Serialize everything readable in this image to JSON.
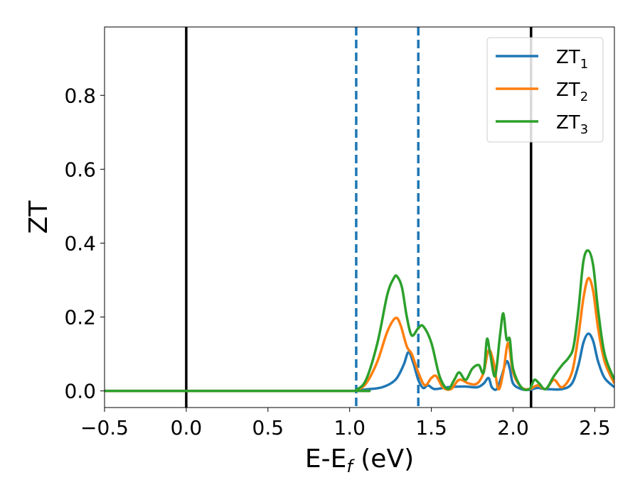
{
  "chart_data": {
    "type": "line",
    "xlabel": "E-E",
    "xlabel_sub": "f",
    "xlabel_unit": " (eV)",
    "ylabel": "ZT",
    "xlim": [
      -0.5,
      2.62
    ],
    "ylim": [
      -0.045,
      0.985
    ],
    "xticks": [
      -0.5,
      0.0,
      0.5,
      1.0,
      1.5,
      2.0,
      2.5
    ],
    "xtick_labels": [
      "−0.5",
      "0.0",
      "0.5",
      "1.0",
      "1.5",
      "2.0",
      "2.5"
    ],
    "yticks": [
      0.0,
      0.2,
      0.4,
      0.6,
      0.8
    ],
    "ytick_labels": [
      "0.0",
      "0.2",
      "0.4",
      "0.6",
      "0.8"
    ],
    "grid": false,
    "legend": "top-right",
    "vlines_solid": [
      0.0,
      2.11
    ],
    "vlines_dashed": [
      1.04,
      1.42
    ],
    "vline_solid_color": "#000000",
    "vline_dashed_color": "#1f77b4",
    "series": [
      {
        "name": "ZT",
        "name_sub": "1",
        "color": "#1f77b4",
        "x": [
          -0.5,
          1.0,
          1.04,
          1.1,
          1.2,
          1.28,
          1.33,
          1.36,
          1.39,
          1.42,
          1.45,
          1.48,
          1.52,
          1.6,
          1.7,
          1.78,
          1.82,
          1.85,
          1.87,
          1.9,
          1.93,
          1.96,
          1.98,
          2.0,
          2.05,
          2.1,
          2.15,
          2.2,
          2.3,
          2.36,
          2.4,
          2.43,
          2.46,
          2.49,
          2.52,
          2.56,
          2.62
        ],
        "y": [
          0.0,
          0.0,
          0.001,
          0.004,
          0.01,
          0.03,
          0.07,
          0.105,
          0.075,
          0.03,
          0.008,
          0.015,
          0.005,
          0.01,
          0.012,
          0.01,
          0.02,
          0.035,
          0.01,
          0.005,
          0.04,
          0.08,
          0.06,
          0.02,
          0.005,
          0.003,
          0.008,
          0.005,
          0.005,
          0.02,
          0.07,
          0.13,
          0.155,
          0.135,
          0.08,
          0.035,
          0.01
        ]
      },
      {
        "name": "ZT",
        "name_sub": "2",
        "color": "#ff7f0e",
        "x": [
          -0.5,
          1.0,
          1.04,
          1.1,
          1.17,
          1.23,
          1.28,
          1.31,
          1.35,
          1.38,
          1.42,
          1.46,
          1.5,
          1.53,
          1.57,
          1.62,
          1.67,
          1.73,
          1.78,
          1.82,
          1.85,
          1.88,
          1.91,
          1.94,
          1.97,
          2.0,
          2.05,
          2.1,
          2.15,
          2.2,
          2.25,
          2.3,
          2.36,
          2.4,
          2.43,
          2.46,
          2.49,
          2.52,
          2.56,
          2.62
        ],
        "y": [
          0.0,
          0.0,
          0.002,
          0.02,
          0.08,
          0.16,
          0.197,
          0.18,
          0.12,
          0.1,
          0.05,
          0.015,
          0.035,
          0.04,
          0.01,
          0.005,
          0.03,
          0.02,
          0.02,
          0.05,
          0.11,
          0.08,
          0.005,
          0.05,
          0.13,
          0.05,
          0.01,
          0.005,
          0.015,
          0.005,
          0.03,
          0.01,
          0.05,
          0.15,
          0.25,
          0.305,
          0.27,
          0.17,
          0.08,
          0.02
        ]
      },
      {
        "name": "ZT",
        "name_sub": "3",
        "color": "#2ca02c",
        "x": [
          -0.5,
          1.0,
          1.04,
          1.1,
          1.17,
          1.23,
          1.27,
          1.29,
          1.32,
          1.35,
          1.38,
          1.42,
          1.45,
          1.5,
          1.55,
          1.6,
          1.64,
          1.67,
          1.71,
          1.75,
          1.79,
          1.82,
          1.84,
          1.86,
          1.89,
          1.92,
          1.94,
          1.96,
          1.98,
          2.0,
          2.05,
          2.1,
          2.13,
          2.16,
          2.2,
          2.25,
          2.3,
          2.34,
          2.37,
          2.4,
          2.43,
          2.46,
          2.49,
          2.52,
          2.56,
          2.62
        ],
        "y": [
          0.0,
          0.0,
          0.003,
          0.03,
          0.13,
          0.26,
          0.305,
          0.31,
          0.28,
          0.2,
          0.15,
          0.17,
          0.175,
          0.13,
          0.04,
          0.005,
          0.03,
          0.05,
          0.03,
          0.06,
          0.07,
          0.05,
          0.14,
          0.1,
          0.04,
          0.15,
          0.21,
          0.14,
          0.14,
          0.06,
          0.01,
          0.005,
          0.03,
          0.02,
          0.005,
          0.04,
          0.07,
          0.09,
          0.12,
          0.22,
          0.35,
          0.38,
          0.34,
          0.22,
          0.1,
          0.03
        ]
      }
    ]
  }
}
